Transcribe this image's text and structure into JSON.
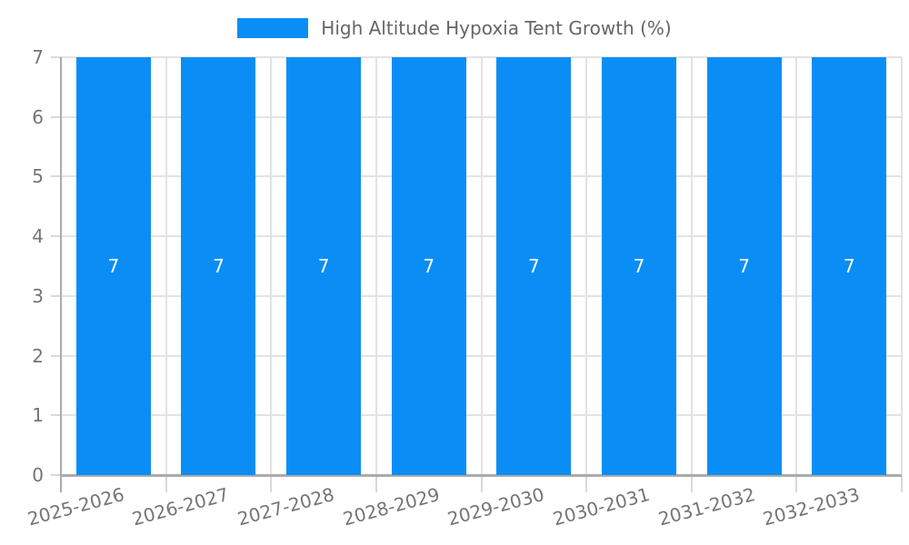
{
  "chart_data": {
    "type": "bar",
    "title": "High Altitude Hypoxia Tent Growth (%)",
    "categories": [
      "2025-2026",
      "2026-2027",
      "2027-2028",
      "2028-2029",
      "2029-2030",
      "2030-2031",
      "2031-2032",
      "2032-2033"
    ],
    "series": [
      {
        "name": "High Altitude Hypoxia Tent Growth (%)",
        "values": [
          7,
          7,
          7,
          7,
          7,
          7,
          7,
          7
        ],
        "data_labels": [
          "7",
          "7",
          "7",
          "7",
          "7",
          "7",
          "7",
          "7"
        ]
      }
    ],
    "xlabel": "",
    "ylabel": "",
    "ylim": [
      0,
      7
    ],
    "ytick_step": 1,
    "ytick_labels": [
      "0",
      "1",
      "2",
      "3",
      "4",
      "5",
      "6",
      "7"
    ],
    "grid": true,
    "legend_position": "top",
    "x_label_rotation_deg": -15
  },
  "legend": {
    "label": "High Altitude Hypoxia Tent Growth (%)",
    "swatch_icon": "legend-color-box"
  },
  "colors": {
    "bar": "#0a8ef5",
    "grid": "#e3e3e3",
    "tick_mark": "#d9d9d9",
    "axis": "#ababab",
    "tick_label": "#757575",
    "legend_text": "#666666",
    "data_label": "#ffffff",
    "background": "#ffffff"
  }
}
